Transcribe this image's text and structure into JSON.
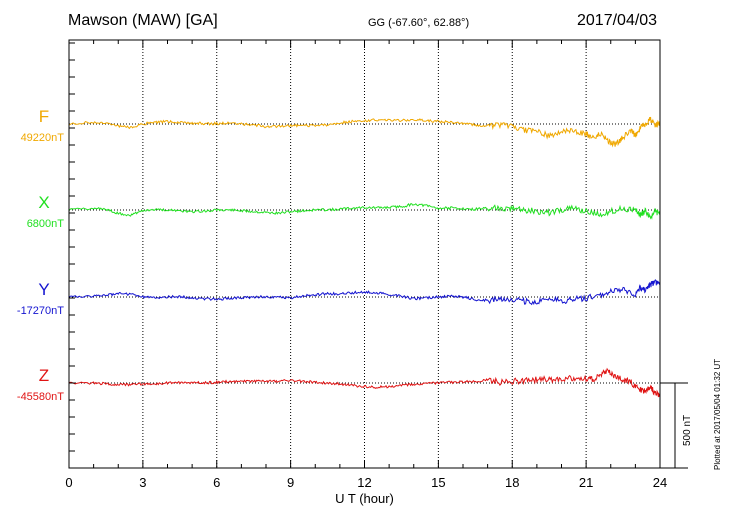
{
  "header": {
    "station": "Mawson (MAW)  [GA]",
    "coords": "GG (-67.60°,  62.88°)",
    "date": "2017/04/03"
  },
  "footer_note": "Plotted at 2017/05/04 01:32 UT",
  "colors": {
    "F": "#f0a800",
    "X": "#22e022",
    "Y": "#1414d0",
    "Z": "#e01414"
  },
  "chart_data": {
    "type": "line",
    "xlabel": "U T (hour)",
    "xlim": [
      0,
      24
    ],
    "xticks": [
      "0",
      "3",
      "6",
      "9",
      "12",
      "15",
      "18",
      "21",
      "24"
    ],
    "scale_bar": {
      "value": 500,
      "label": "500 nT"
    },
    "grid": "dotted vertical every 3 h",
    "series": [
      {
        "name": "F",
        "baseline_label": "49220nT",
        "baseline": 49220,
        "x": [
          0,
          1,
          1.5,
          2,
          2.5,
          3,
          3.5,
          4,
          4.5,
          5,
          5.5,
          6,
          6.5,
          7,
          7.5,
          8,
          8.5,
          9,
          9.5,
          10,
          10.5,
          11,
          11.5,
          12,
          12.5,
          13,
          13.5,
          14,
          14.5,
          15,
          15.5,
          16,
          16.5,
          17,
          17.5,
          18,
          18.5,
          19,
          19.5,
          20,
          20.5,
          21,
          21.3,
          21.6,
          21.9,
          22.2,
          22.5,
          22.8,
          23,
          23.2,
          23.4,
          23.6,
          23.8,
          24
        ],
        "y": [
          49220,
          49230,
          49225,
          49210,
          49200,
          49220,
          49230,
          49235,
          49228,
          49225,
          49222,
          49222,
          49225,
          49220,
          49215,
          49205,
          49205,
          49210,
          49212,
          49210,
          49215,
          49228,
          49235,
          49240,
          49245,
          49240,
          49242,
          49245,
          49240,
          49235,
          49230,
          49225,
          49215,
          49210,
          49215,
          49205,
          49185,
          49175,
          49150,
          49170,
          49185,
          49160,
          49145,
          49165,
          49120,
          49100,
          49140,
          49180,
          49155,
          49200,
          49220,
          49250,
          49210,
          49225
        ]
      },
      {
        "name": "X",
        "baseline_label": "6800nT",
        "baseline": 6800,
        "x": [
          0,
          1,
          1.5,
          2,
          2.5,
          3,
          3.5,
          4,
          4.5,
          5,
          5.5,
          6,
          6.5,
          7,
          7.5,
          8,
          8.5,
          9,
          9.5,
          10,
          10.5,
          11,
          11.5,
          12,
          12.5,
          13,
          13.5,
          14,
          14.5,
          15,
          15.5,
          16,
          16.5,
          17,
          17.5,
          18,
          18.5,
          19,
          19.5,
          20,
          20.5,
          21,
          21.5,
          22,
          22.5,
          23,
          23.2,
          23.4,
          23.6,
          23.8,
          24
        ],
        "y": [
          6800,
          6810,
          6805,
          6780,
          6770,
          6795,
          6805,
          6800,
          6795,
          6790,
          6795,
          6800,
          6800,
          6795,
          6790,
          6785,
          6780,
          6790,
          6795,
          6800,
          6802,
          6805,
          6810,
          6815,
          6812,
          6815,
          6820,
          6835,
          6825,
          6810,
          6812,
          6808,
          6805,
          6812,
          6815,
          6808,
          6800,
          6792,
          6785,
          6800,
          6810,
          6790,
          6775,
          6790,
          6810,
          6800,
          6770,
          6795,
          6760,
          6790,
          6780
        ]
      },
      {
        "name": "Y",
        "baseline_label": "-17270nT",
        "baseline": -17270,
        "x": [
          0,
          1,
          1.5,
          2,
          2.5,
          3,
          3.5,
          4,
          4.5,
          5,
          5.5,
          6,
          6.5,
          7,
          7.5,
          8,
          8.5,
          9,
          9.5,
          10,
          10.5,
          11,
          11.5,
          12,
          12.5,
          13,
          13.5,
          14,
          14.5,
          15,
          15.5,
          16,
          16.5,
          17,
          17.5,
          18,
          18.5,
          19,
          19.5,
          20,
          20.5,
          21,
          21.5,
          22,
          22.5,
          23,
          23.2,
          23.4,
          23.6,
          23.8,
          24
        ],
        "y": [
          -17270,
          -17265,
          -17260,
          -17250,
          -17255,
          -17270,
          -17275,
          -17270,
          -17268,
          -17275,
          -17280,
          -17282,
          -17280,
          -17275,
          -17270,
          -17268,
          -17270,
          -17275,
          -17265,
          -17258,
          -17250,
          -17252,
          -17245,
          -17240,
          -17245,
          -17255,
          -17265,
          -17280,
          -17275,
          -17270,
          -17265,
          -17270,
          -17285,
          -17290,
          -17285,
          -17280,
          -17295,
          -17305,
          -17275,
          -17295,
          -17285,
          -17275,
          -17265,
          -17240,
          -17230,
          -17255,
          -17215,
          -17230,
          -17200,
          -17185,
          -17180
        ]
      },
      {
        "name": "Z",
        "baseline_label": "-45580nT",
        "baseline": -45580,
        "x": [
          0,
          1,
          1.5,
          2,
          2.5,
          3,
          3.5,
          4,
          4.5,
          5,
          5.5,
          6,
          6.5,
          7,
          7.5,
          8,
          8.5,
          9,
          9.5,
          10,
          10.5,
          11,
          11.5,
          12,
          12.5,
          13,
          13.5,
          14,
          14.5,
          15,
          15.5,
          16,
          16.5,
          17,
          17.5,
          18,
          18.5,
          19,
          19.5,
          20,
          20.5,
          21,
          21.3,
          21.6,
          21.9,
          22.2,
          22.5,
          22.8,
          23,
          23.2,
          23.4,
          23.6,
          23.8,
          24
        ],
        "y": [
          -45580,
          -45580,
          -45585,
          -45590,
          -45590,
          -45585,
          -45585,
          -45580,
          -45578,
          -45578,
          -45580,
          -45575,
          -45572,
          -45570,
          -45568,
          -45568,
          -45570,
          -45565,
          -45570,
          -45575,
          -45580,
          -45585,
          -45595,
          -45600,
          -45605,
          -45600,
          -45595,
          -45590,
          -45585,
          -45580,
          -45575,
          -45575,
          -45570,
          -45560,
          -45575,
          -45570,
          -45565,
          -45560,
          -45560,
          -45560,
          -45550,
          -45555,
          -45560,
          -45525,
          -45510,
          -45545,
          -45560,
          -45575,
          -45600,
          -45620,
          -45630,
          -45600,
          -45640,
          -45650
        ]
      }
    ]
  }
}
